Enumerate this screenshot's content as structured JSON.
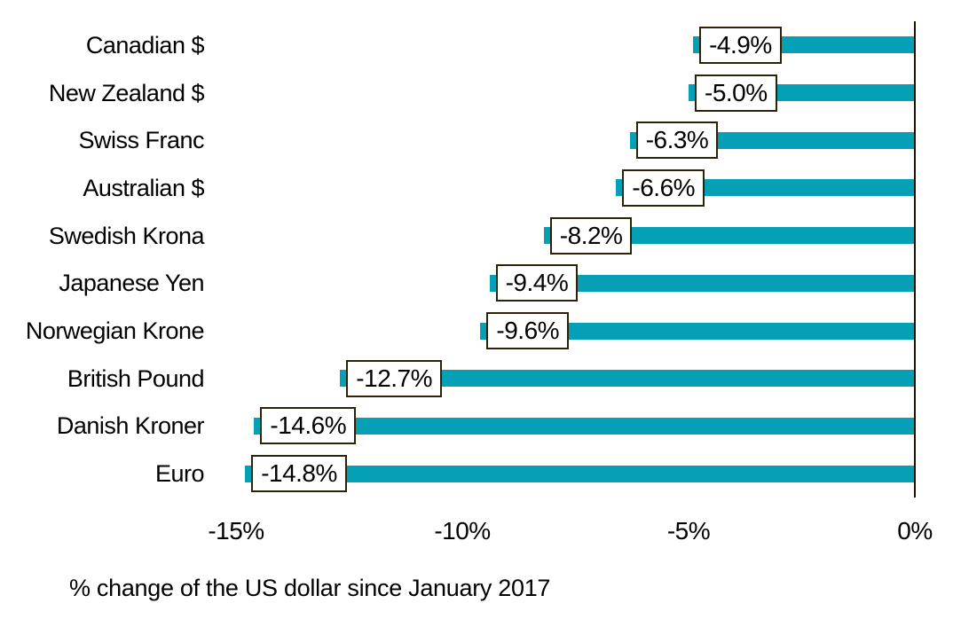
{
  "chart_data": {
    "type": "bar",
    "orientation": "horizontal",
    "title": "",
    "caption": "% change of the US dollar since January 2017",
    "categories": [
      "Canadian $",
      "New Zealand $",
      "Swiss Franc",
      "Australian $",
      "Swedish Krona",
      "Japanese Yen",
      "Norwegian Krone",
      "British Pound",
      "Danish Kroner",
      "Euro"
    ],
    "values": [
      -4.9,
      -5.0,
      -6.3,
      -6.6,
      -8.2,
      -9.4,
      -9.6,
      -12.7,
      -14.6,
      -14.8
    ],
    "value_labels": [
      "-4.9%",
      "-5.0%",
      "-6.3%",
      "-6.6%",
      "-8.2%",
      "-9.4%",
      "-9.6%",
      "-12.7%",
      "-14.6%",
      "-14.8%"
    ],
    "x_axis": {
      "tick_labels": [
        "-15%",
        "-10%",
        "-5%",
        "0%"
      ],
      "tick_values": [
        -15,
        -10,
        -5,
        0
      ],
      "range": [
        -15.45,
        0
      ],
      "zero_line": true
    },
    "grid": false,
    "legend": false,
    "colors": {
      "bar": "#05a0b6",
      "label_box_bg": "#ffffff",
      "label_box_border": "#2b2208",
      "axis_line": "#1c1400",
      "text": "#000000",
      "background": "#ffffff"
    }
  }
}
